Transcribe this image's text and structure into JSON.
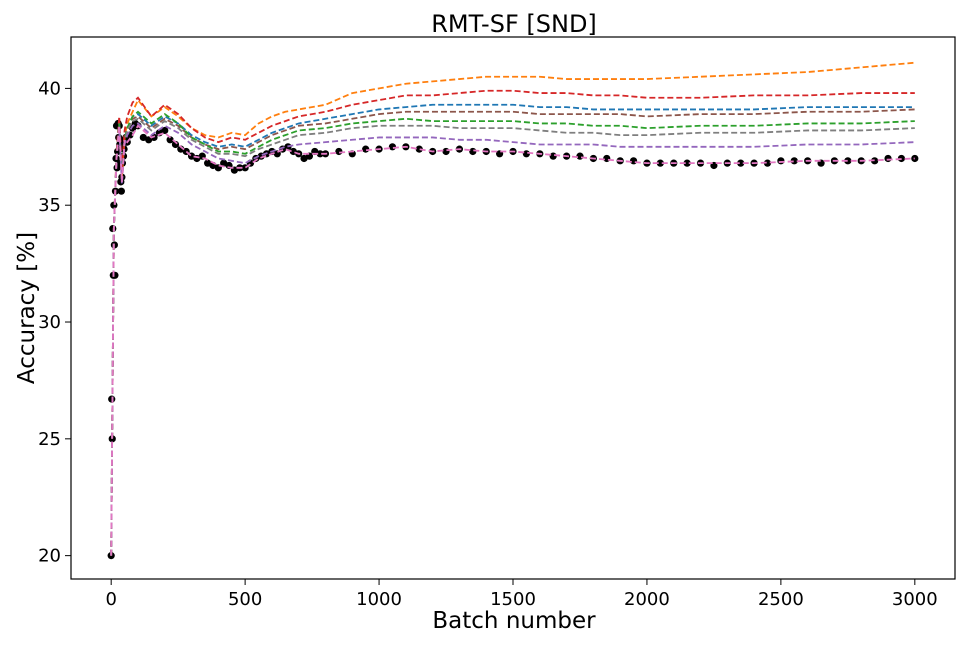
{
  "chart_data": {
    "type": "line",
    "title": "RMT-SF [SND]",
    "xlabel": "Batch number",
    "ylabel": "Accuracy [%]",
    "xlim": [
      -150,
      3150
    ],
    "ylim": [
      19.0,
      42.2
    ],
    "xticks": [
      0,
      500,
      1000,
      1500,
      2000,
      2500,
      3000
    ],
    "yticks": [
      20,
      25,
      30,
      35,
      40
    ],
    "grid": false,
    "legend": "none",
    "scatter_series": {
      "color": "#000000",
      "x": [
        0,
        2,
        4,
        6,
        8,
        10,
        12,
        14,
        16,
        18,
        20,
        22,
        24,
        26,
        28,
        30,
        32,
        34,
        36,
        38,
        40,
        42,
        44,
        46,
        48,
        50,
        55,
        60,
        70,
        80,
        90,
        100,
        120,
        140,
        160,
        180,
        200,
        220,
        240,
        260,
        280,
        300,
        320,
        340,
        360,
        380,
        400,
        420,
        440,
        460,
        480,
        500,
        520,
        540,
        560,
        580,
        600,
        620,
        640,
        660,
        680,
        700,
        720,
        740,
        760,
        780,
        800,
        850,
        900,
        950,
        1000,
        1050,
        1100,
        1150,
        1200,
        1250,
        1300,
        1350,
        1400,
        1450,
        1500,
        1550,
        1600,
        1650,
        1700,
        1750,
        1800,
        1850,
        1900,
        1950,
        2000,
        2050,
        2100,
        2150,
        2200,
        2250,
        2300,
        2350,
        2400,
        2450,
        2500,
        2550,
        2600,
        2650,
        2700,
        2750,
        2800,
        2850,
        2900,
        2950,
        3000
      ],
      "y": [
        20.0,
        26.7,
        25.0,
        34.0,
        32.0,
        35.0,
        33.3,
        32.0,
        35.6,
        37.0,
        38.4,
        36.6,
        37.3,
        38.5,
        37.9,
        38.4,
        37.6,
        36.8,
        36.0,
        35.6,
        36.2,
        36.8,
        37.5,
        37.1,
        37.4,
        37.8,
        37.9,
        37.7,
        38.0,
        38.3,
        38.5,
        38.4,
        37.9,
        37.8,
        37.9,
        38.1,
        38.2,
        37.8,
        37.6,
        37.4,
        37.3,
        37.1,
        37.0,
        37.1,
        36.8,
        36.7,
        36.6,
        36.8,
        36.7,
        36.5,
        36.6,
        36.6,
        36.8,
        37.0,
        37.1,
        37.2,
        37.3,
        37.2,
        37.4,
        37.5,
        37.3,
        37.2,
        37.0,
        37.1,
        37.3,
        37.2,
        37.2,
        37.3,
        37.2,
        37.4,
        37.4,
        37.5,
        37.5,
        37.4,
        37.3,
        37.3,
        37.4,
        37.3,
        37.3,
        37.2,
        37.3,
        37.2,
        37.2,
        37.1,
        37.1,
        37.1,
        37.0,
        37.0,
        36.9,
        36.9,
        36.8,
        36.8,
        36.8,
        36.8,
        36.8,
        36.7,
        36.8,
        36.8,
        36.8,
        36.8,
        36.9,
        36.9,
        36.9,
        36.8,
        36.9,
        36.9,
        36.9,
        36.9,
        37.0,
        37.0,
        37.0
      ]
    },
    "line_x": [
      0,
      10,
      20,
      30,
      40,
      50,
      60,
      80,
      100,
      150,
      200,
      250,
      300,
      350,
      400,
      450,
      500,
      550,
      600,
      650,
      700,
      800,
      900,
      1000,
      1100,
      1200,
      1300,
      1400,
      1500,
      1600,
      1700,
      1800,
      1900,
      2000,
      2200,
      2400,
      2600,
      2800,
      3000
    ],
    "series": [
      {
        "color": "#ff7f0e",
        "values": [
          20.0,
          34.0,
          37.0,
          38.5,
          36.2,
          37.9,
          38.5,
          39.0,
          39.5,
          38.8,
          39.2,
          38.8,
          38.3,
          38.0,
          37.9,
          38.1,
          38.0,
          38.5,
          38.8,
          39.0,
          39.1,
          39.3,
          39.8,
          40.0,
          40.2,
          40.3,
          40.4,
          40.5,
          40.5,
          40.5,
          40.4,
          40.4,
          40.4,
          40.4,
          40.5,
          40.6,
          40.7,
          40.9,
          41.1
        ]
      },
      {
        "color": "#d62728",
        "values": [
          20.0,
          34.0,
          37.3,
          38.8,
          36.5,
          38.2,
          38.8,
          39.4,
          39.6,
          38.8,
          39.3,
          38.9,
          38.3,
          37.9,
          37.7,
          37.9,
          37.8,
          38.1,
          38.4,
          38.6,
          38.8,
          39.0,
          39.3,
          39.5,
          39.7,
          39.7,
          39.8,
          39.9,
          39.9,
          39.8,
          39.8,
          39.7,
          39.7,
          39.6,
          39.6,
          39.7,
          39.7,
          39.8,
          39.8
        ]
      },
      {
        "color": "#1f77b4",
        "values": [
          20.0,
          34.0,
          37.0,
          38.5,
          36.1,
          37.8,
          38.3,
          38.8,
          38.9,
          38.4,
          38.8,
          38.5,
          38.0,
          37.7,
          37.5,
          37.6,
          37.5,
          37.8,
          38.1,
          38.3,
          38.5,
          38.7,
          38.9,
          39.1,
          39.2,
          39.3,
          39.3,
          39.3,
          39.3,
          39.2,
          39.2,
          39.1,
          39.1,
          39.1,
          39.1,
          39.1,
          39.2,
          39.2,
          39.2
        ]
      },
      {
        "color": "#8c564b",
        "values": [
          20.0,
          34.0,
          37.0,
          38.4,
          36.0,
          37.7,
          38.2,
          38.7,
          38.8,
          38.3,
          38.7,
          38.4,
          37.9,
          37.6,
          37.4,
          37.5,
          37.4,
          37.7,
          38.0,
          38.2,
          38.4,
          38.5,
          38.7,
          38.9,
          39.0,
          39.0,
          39.0,
          39.0,
          39.0,
          38.9,
          38.9,
          38.9,
          38.9,
          38.8,
          38.9,
          38.9,
          39.0,
          39.0,
          39.1
        ]
      },
      {
        "color": "#2ca02c",
        "values": [
          20.0,
          34.0,
          37.1,
          38.5,
          36.1,
          37.8,
          38.3,
          38.8,
          39.0,
          38.5,
          38.9,
          38.5,
          37.9,
          37.6,
          37.3,
          37.3,
          37.2,
          37.5,
          37.8,
          38.0,
          38.2,
          38.3,
          38.5,
          38.6,
          38.7,
          38.6,
          38.6,
          38.6,
          38.6,
          38.5,
          38.5,
          38.4,
          38.4,
          38.3,
          38.4,
          38.4,
          38.5,
          38.5,
          38.6
        ]
      },
      {
        "color": "#7f7f7f",
        "values": [
          20.0,
          34.0,
          37.0,
          38.4,
          36.0,
          37.7,
          38.2,
          38.6,
          38.7,
          38.2,
          38.6,
          38.3,
          37.8,
          37.5,
          37.2,
          37.2,
          37.1,
          37.4,
          37.6,
          37.8,
          38.0,
          38.1,
          38.3,
          38.4,
          38.4,
          38.4,
          38.3,
          38.3,
          38.3,
          38.2,
          38.1,
          38.1,
          38.0,
          38.0,
          38.1,
          38.1,
          38.2,
          38.2,
          38.3
        ]
      },
      {
        "color": "#9467bd",
        "values": [
          20.0,
          34.0,
          37.0,
          38.3,
          35.9,
          37.6,
          38.0,
          38.4,
          38.5,
          38.0,
          38.4,
          38.1,
          37.6,
          37.3,
          37.0,
          36.9,
          36.8,
          37.1,
          37.3,
          37.5,
          37.6,
          37.7,
          37.8,
          37.9,
          37.9,
          37.9,
          37.8,
          37.8,
          37.7,
          37.6,
          37.6,
          37.6,
          37.5,
          37.5,
          37.5,
          37.5,
          37.6,
          37.6,
          37.7
        ]
      },
      {
        "color": "#e377c2",
        "values": [
          20.0,
          34.0,
          37.0,
          38.4,
          36.0,
          37.8,
          37.7,
          38.0,
          38.4,
          37.9,
          38.1,
          37.6,
          37.1,
          37.0,
          36.7,
          36.6,
          36.6,
          37.0,
          37.2,
          37.4,
          37.2,
          37.2,
          37.3,
          37.4,
          37.5,
          37.3,
          37.4,
          37.3,
          37.3,
          37.2,
          37.1,
          37.0,
          36.9,
          36.8,
          36.8,
          36.8,
          36.9,
          36.9,
          37.0
        ]
      }
    ]
  }
}
